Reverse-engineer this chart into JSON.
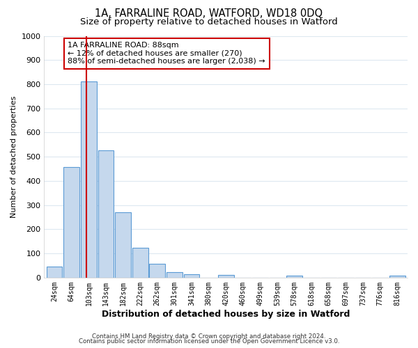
{
  "title": "1A, FARRALINE ROAD, WATFORD, WD18 0DQ",
  "subtitle": "Size of property relative to detached houses in Watford",
  "xlabel": "Distribution of detached houses by size in Watford",
  "ylabel": "Number of detached properties",
  "bar_labels": [
    "24sqm",
    "64sqm",
    "103sqm",
    "143sqm",
    "182sqm",
    "222sqm",
    "262sqm",
    "301sqm",
    "341sqm",
    "380sqm",
    "420sqm",
    "460sqm",
    "499sqm",
    "539sqm",
    "578sqm",
    "618sqm",
    "658sqm",
    "697sqm",
    "737sqm",
    "776sqm",
    "816sqm"
  ],
  "bar_values": [
    47,
    457,
    810,
    527,
    270,
    123,
    57,
    22,
    15,
    0,
    10,
    0,
    0,
    0,
    8,
    0,
    0,
    0,
    0,
    0,
    8
  ],
  "bar_color": "#c5d8ed",
  "bar_edge_color": "#5b9bd5",
  "vline_x": 1.85,
  "vline_color": "#cc0000",
  "ylim": [
    0,
    1000
  ],
  "yticks": [
    0,
    100,
    200,
    300,
    400,
    500,
    600,
    700,
    800,
    900,
    1000
  ],
  "annotation_title": "1A FARRALINE ROAD: 88sqm",
  "annotation_line1": "← 12% of detached houses are smaller (270)",
  "annotation_line2": "88% of semi-detached houses are larger (2,038) →",
  "annotation_box_color": "#ffffff",
  "annotation_box_edge_color": "#cc0000",
  "footer1": "Contains HM Land Registry data © Crown copyright and database right 2024.",
  "footer2": "Contains public sector information licensed under the Open Government Licence v3.0.",
  "bg_color": "#ffffff",
  "plot_bg_color": "#ffffff",
  "grid_color": "#dde8f0",
  "title_fontsize": 10.5,
  "subtitle_fontsize": 9.5
}
